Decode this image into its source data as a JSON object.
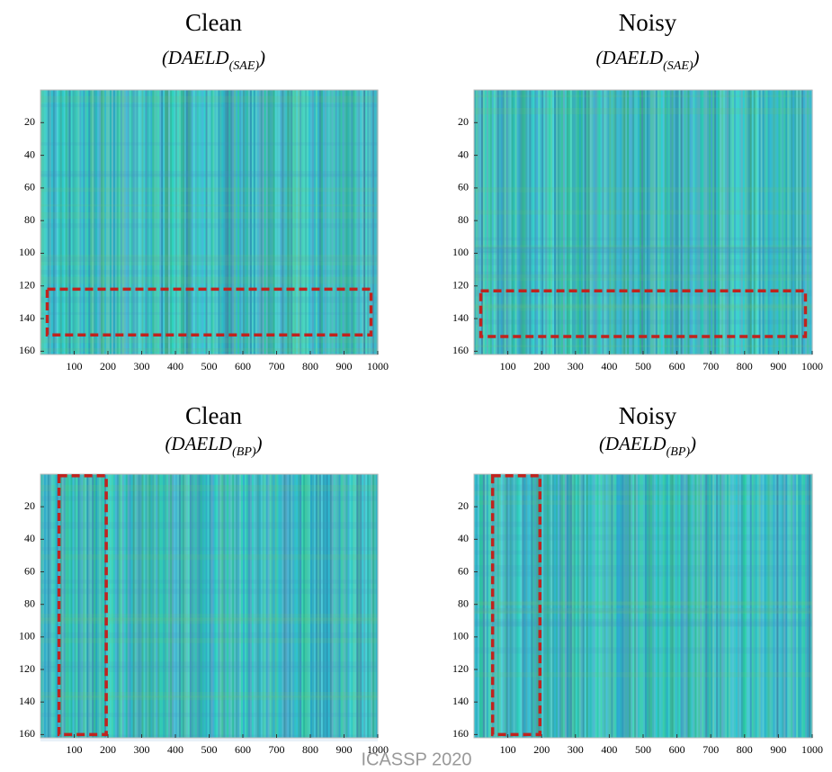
{
  "chart_data": [
    {
      "type": "heatmap",
      "title": "Clean",
      "subtitle": [
        "(DAELD",
        "(SAE)",
        ")"
      ],
      "xlim": [
        0,
        1000
      ],
      "xticks": [
        100,
        200,
        300,
        400,
        500,
        600,
        700,
        800,
        900,
        1000
      ],
      "ylim": [
        162,
        0
      ],
      "yticks": [
        20,
        40,
        60,
        80,
        100,
        120,
        140,
        160
      ],
      "highlight": {
        "x": [
          20,
          980
        ],
        "y": [
          122,
          150
        ],
        "color": "#c0231e"
      }
    },
    {
      "type": "heatmap",
      "title": "Noisy",
      "subtitle": [
        "(DAELD",
        "(SAE)",
        ")"
      ],
      "xlim": [
        0,
        1000
      ],
      "xticks": [
        100,
        200,
        300,
        400,
        500,
        600,
        700,
        800,
        900,
        1000
      ],
      "ylim": [
        162,
        0
      ],
      "yticks": [
        20,
        40,
        60,
        80,
        100,
        120,
        140,
        160
      ],
      "highlight": {
        "x": [
          20,
          980
        ],
        "y": [
          123,
          151
        ],
        "color": "#c0231e"
      }
    },
    {
      "type": "heatmap",
      "title": "Clean",
      "subtitle": [
        "(DAELD",
        "(BP)",
        ")"
      ],
      "xlim": [
        0,
        1000
      ],
      "xticks": [
        100,
        200,
        300,
        400,
        500,
        600,
        700,
        800,
        900,
        1000
      ],
      "ylim": [
        162,
        0
      ],
      "yticks": [
        20,
        40,
        60,
        80,
        100,
        120,
        140,
        160
      ],
      "highlight": {
        "x": [
          55,
          195
        ],
        "y": [
          1,
          160
        ],
        "color": "#c0231e"
      }
    },
    {
      "type": "heatmap",
      "title": "Noisy",
      "subtitle": [
        "(DAELD",
        "(BP)",
        ")"
      ],
      "xlim": [
        0,
        1000
      ],
      "xticks": [
        100,
        200,
        300,
        400,
        500,
        600,
        700,
        800,
        900,
        1000
      ],
      "ylim": [
        162,
        0
      ],
      "yticks": [
        20,
        40,
        60,
        80,
        100,
        120,
        140,
        160
      ],
      "highlight": {
        "x": [
          55,
          195
        ],
        "y": [
          1,
          160
        ],
        "color": "#c0231e"
      }
    }
  ],
  "footer": "ICASSP 2020"
}
